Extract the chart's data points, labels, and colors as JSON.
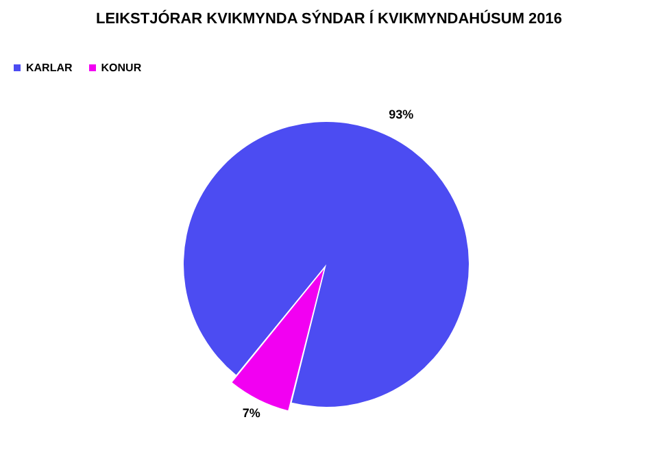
{
  "chart_data": {
    "type": "pie",
    "title": "LEIKSTJÓRAR KVIKMYNDA SÝNDAR Í KVIKMYNDAHÚSUM 2016",
    "categories": [
      "KARLAR",
      "KONUR"
    ],
    "values": [
      93,
      7
    ],
    "colors": [
      "#4c4cf2",
      "#f200f2"
    ],
    "value_labels": [
      "93%",
      "7%"
    ],
    "legend": "top left"
  }
}
